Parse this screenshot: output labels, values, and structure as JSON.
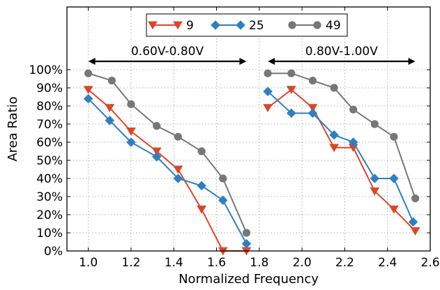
{
  "chart_data": {
    "type": "line",
    "title": "",
    "xlabel": "Normalized Frequency",
    "ylabel": "Area Ratio",
    "xlim": [
      0.9,
      2.6
    ],
    "ylim": [
      0,
      100
    ],
    "xticks": [
      "1.0",
      "1.2",
      "1.4",
      "1.6",
      "1.8",
      "2.0",
      "2.2",
      "2.4",
      "2.6"
    ],
    "xtick_values": [
      1.0,
      1.2,
      1.4,
      1.6,
      1.8,
      2.0,
      2.2,
      2.4,
      2.6
    ],
    "yticks": [
      "0%",
      "10%",
      "20%",
      "30%",
      "40%",
      "50%",
      "60%",
      "70%",
      "80%",
      "90%",
      "100%"
    ],
    "ytick_values": [
      0,
      10,
      20,
      30,
      40,
      50,
      60,
      70,
      80,
      90,
      100
    ],
    "grid": true,
    "legend_position": "top-center",
    "annotations": [
      {
        "text": "0.60V-0.80V",
        "from": 1.0,
        "to": 1.74,
        "y": 105
      },
      {
        "text": "0.80V-1.00V",
        "from": 1.84,
        "to": 2.53,
        "y": 105
      }
    ],
    "series": [
      {
        "name": "9",
        "color": "#d9472b",
        "marker": "triangle-down",
        "segments": [
          [
            [
              1.0,
              89
            ],
            [
              1.1,
              79
            ],
            [
              1.2,
              66
            ],
            [
              1.32,
              55
            ],
            [
              1.42,
              45
            ],
            [
              1.53,
              23
            ],
            [
              1.63,
              0
            ],
            [
              1.74,
              0
            ]
          ],
          [
            [
              1.84,
              79
            ],
            [
              1.95,
              89
            ],
            [
              2.05,
              79
            ],
            [
              2.15,
              57
            ],
            [
              2.24,
              57
            ],
            [
              2.34,
              33
            ],
            [
              2.43,
              23
            ],
            [
              2.53,
              11
            ]
          ]
        ]
      },
      {
        "name": "25",
        "color": "#2f80bf",
        "marker": "diamond",
        "segments": [
          [
            [
              1.0,
              84
            ],
            [
              1.1,
              72
            ],
            [
              1.2,
              60
            ],
            [
              1.32,
              52
            ],
            [
              1.42,
              40
            ],
            [
              1.53,
              36
            ],
            [
              1.63,
              28
            ],
            [
              1.74,
              4
            ]
          ],
          [
            [
              1.84,
              88
            ],
            [
              1.95,
              76
            ],
            [
              2.05,
              76
            ],
            [
              2.15,
              64
            ],
            [
              2.24,
              60
            ],
            [
              2.34,
              40
            ],
            [
              2.43,
              40
            ],
            [
              2.52,
              16
            ]
          ]
        ]
      },
      {
        "name": "49",
        "color": "#777777",
        "marker": "circle",
        "segments": [
          [
            [
              1.0,
              98
            ],
            [
              1.11,
              94
            ],
            [
              1.2,
              81
            ],
            [
              1.32,
              69
            ],
            [
              1.42,
              63
            ],
            [
              1.53,
              55
            ],
            [
              1.63,
              40
            ],
            [
              1.74,
              10
            ]
          ],
          [
            [
              1.84,
              98
            ],
            [
              1.95,
              98
            ],
            [
              2.05,
              94
            ],
            [
              2.15,
              90
            ],
            [
              2.24,
              78
            ],
            [
              2.34,
              70
            ],
            [
              2.43,
              63
            ],
            [
              2.53,
              29
            ]
          ]
        ]
      }
    ]
  }
}
